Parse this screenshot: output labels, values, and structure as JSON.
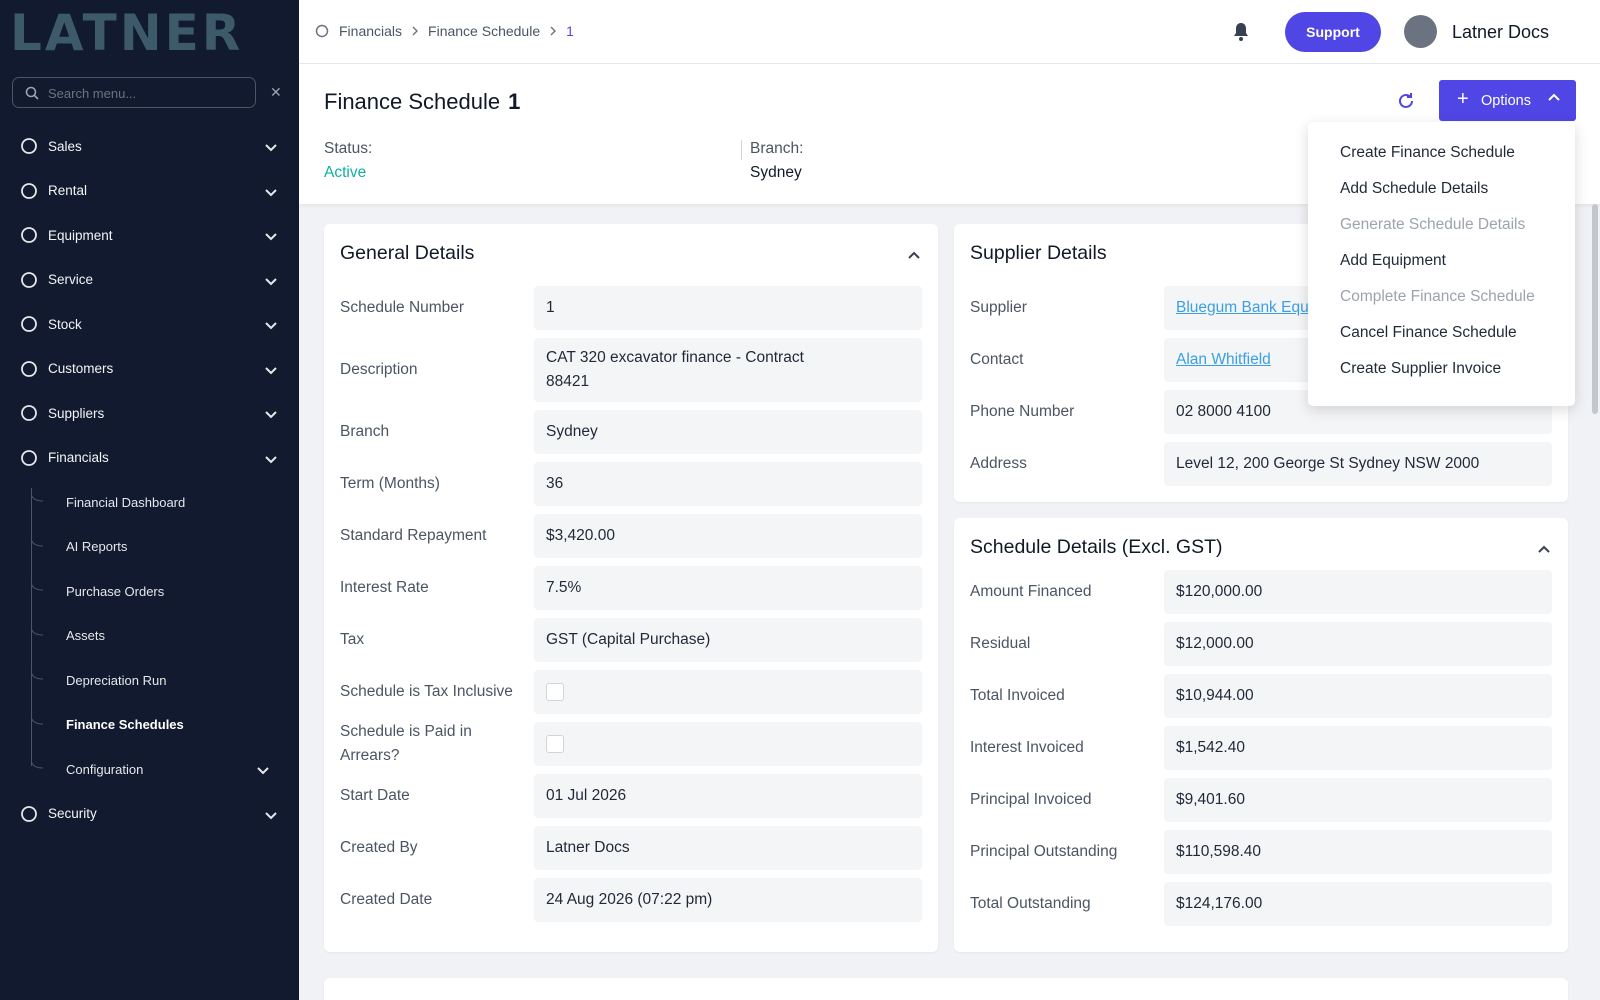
{
  "logo": "LATNER",
  "sidebar": {
    "search_placeholder": "Search menu...",
    "nav": [
      {
        "label": "Sales"
      },
      {
        "label": "Rental"
      },
      {
        "label": "Equipment"
      },
      {
        "label": "Service"
      },
      {
        "label": "Stock"
      },
      {
        "label": "Customers"
      },
      {
        "label": "Suppliers"
      },
      {
        "label": "Financials",
        "children": [
          {
            "label": "Financial Dashboard"
          },
          {
            "label": "AI Reports"
          },
          {
            "label": "Purchase Orders"
          },
          {
            "label": "Assets"
          },
          {
            "label": "Depreciation Run"
          },
          {
            "label": "Finance Schedules",
            "active": true
          },
          {
            "label": "Configuration"
          }
        ]
      },
      {
        "label": "Security"
      }
    ]
  },
  "breadcrumb": [
    "Financials",
    "Finance Schedule",
    "1"
  ],
  "topbar": {
    "support": "Support",
    "user": "Latner Docs"
  },
  "page": {
    "title": "Finance Schedule",
    "id": "1",
    "options": "Options",
    "status_label": "Status:",
    "status": "Active",
    "branch_label": "Branch:",
    "branch": "Sydney"
  },
  "options_menu": [
    {
      "label": "Create Finance Schedule",
      "disabled": false
    },
    {
      "label": "Add Schedule Details",
      "disabled": false
    },
    {
      "label": "Generate Schedule Details",
      "disabled": true
    },
    {
      "label": "Add Equipment",
      "disabled": false
    },
    {
      "label": "Complete Finance Schedule",
      "disabled": true
    },
    {
      "label": "Cancel Finance Schedule",
      "disabled": false
    },
    {
      "label": "Create Supplier Invoice",
      "disabled": false
    }
  ],
  "general": {
    "title": "General Details",
    "fields": [
      {
        "label": "Schedule Number",
        "value": "1"
      },
      {
        "label": "Description",
        "value": "CAT 320 excavator finance - Contract 88421"
      },
      {
        "label": "Branch",
        "value": "Sydney"
      },
      {
        "label": "Term (Months)",
        "value": "36"
      },
      {
        "label": "Standard Repayment",
        "value": "$3,420.00"
      },
      {
        "label": "Interest Rate",
        "value": "7.5%"
      },
      {
        "label": "Tax",
        "value": "GST (Capital Purchase)"
      },
      {
        "label": "Schedule is Tax Inclusive",
        "checked": false
      },
      {
        "label": "Schedule is Paid in Arrears?",
        "checked": false
      },
      {
        "label": "Start Date",
        "value": "01 Jul 2026"
      },
      {
        "label": "Created By",
        "value": "Latner Docs"
      },
      {
        "label": "Created Date",
        "value": "24 Aug 2026 (07:22 pm)"
      }
    ]
  },
  "supplier": {
    "title": "Supplier Details",
    "fields": [
      {
        "label": "Supplier",
        "value": "Bluegum Bank Equ",
        "link": true
      },
      {
        "label": "Contact",
        "value": "Alan Whitfield",
        "link": true
      },
      {
        "label": "Phone Number",
        "value": "02 8000 4100"
      },
      {
        "label": "Address",
        "value": "Level 12, 200 George St Sydney NSW 2000"
      }
    ]
  },
  "schedule": {
    "title": "Schedule Details (Excl. GST)",
    "fields": [
      {
        "label": "Amount Financed",
        "value": "$120,000.00"
      },
      {
        "label": "Residual",
        "value": "$12,000.00"
      },
      {
        "label": "Total Invoiced",
        "value": "$10,944.00"
      },
      {
        "label": "Interest Invoiced",
        "value": "$1,542.40"
      },
      {
        "label": "Principal Invoiced",
        "value": "$9,401.60"
      },
      {
        "label": "Principal Outstanding",
        "value": "$110,598.40"
      },
      {
        "label": "Total Outstanding",
        "value": "$124,176.00"
      }
    ]
  }
}
